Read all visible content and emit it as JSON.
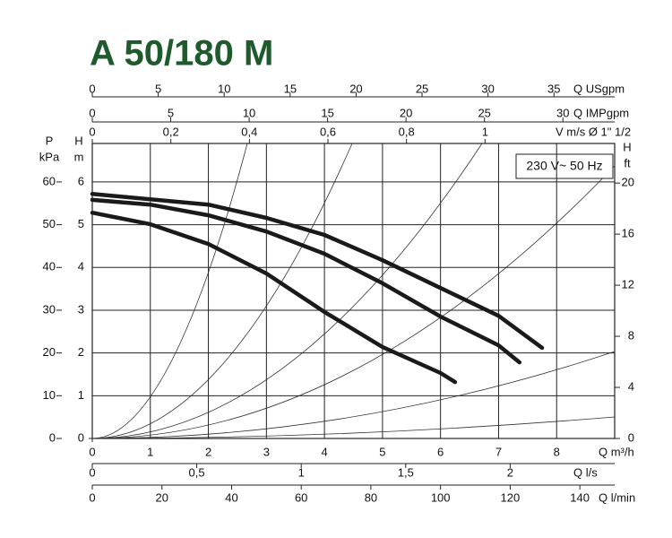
{
  "chart_data": {
    "type": "line",
    "title": "A 50/180 M",
    "annotation": "230 V~ 50 Hz",
    "x_label": "Q m³/h",
    "xlim": [
      0,
      9
    ],
    "xticks": [
      0,
      1,
      2,
      3,
      4,
      5,
      6,
      7,
      8
    ],
    "y_label": [
      "H",
      "m"
    ],
    "ylim": [
      0,
      6.9
    ],
    "yticks": [
      0,
      1,
      2,
      3,
      4,
      5,
      6
    ],
    "grid": true,
    "series": [
      {
        "color": "#1a1a1a",
        "x": [
          0,
          2,
          3,
          4,
          5,
          6,
          7,
          7.75
        ],
        "values": [
          5.72,
          5.47,
          5.16,
          4.76,
          4.17,
          3.52,
          2.87,
          2.12
        ]
      },
      {
        "color": "#1a1a1a",
        "x": [
          0,
          1,
          2,
          3,
          4,
          5,
          6,
          7,
          7.36
        ],
        "values": [
          5.58,
          5.47,
          5.22,
          4.84,
          4.32,
          3.63,
          2.85,
          2.18,
          1.78
        ]
      },
      {
        "color": "#1a1a1a",
        "x": [
          0,
          1,
          2,
          3,
          4,
          5,
          6,
          6.25
        ],
        "values": [
          5.28,
          5.01,
          4.55,
          3.86,
          2.96,
          2.14,
          1.53,
          1.32
        ]
      }
    ],
    "axes": [
      {
        "side": "left",
        "label": [
          "P",
          "kPa"
        ],
        "lim": [
          0,
          69
        ],
        "ticks": [
          0,
          10,
          20,
          30,
          40,
          50,
          60
        ]
      },
      {
        "side": "right",
        "label": [
          "H",
          "ft"
        ],
        "lim": [
          0,
          23.1
        ],
        "ticks": [
          0,
          4,
          8,
          12,
          16,
          20
        ]
      },
      {
        "side": "top",
        "label": [
          "Q USgpm"
        ],
        "lim": [
          0,
          39.6
        ],
        "ticks": [
          0,
          5,
          10,
          15,
          20,
          25,
          30,
          35
        ]
      },
      {
        "side": "top",
        "label": [
          "Q IMPgpm"
        ],
        "lim": [
          0,
          33.3
        ],
        "ticks": [
          0,
          5,
          10,
          15,
          20,
          25,
          30
        ]
      },
      {
        "side": "top",
        "label": [
          "V m/s Ø 1\" 1/2"
        ],
        "lim": [
          0,
          1.33
        ],
        "ticks": [
          0,
          {
            "value": 0.2,
            "label": "0,2"
          },
          {
            "value": 0.4,
            "label": "0,4"
          },
          {
            "value": 0.6,
            "label": "0,6"
          },
          {
            "value": 0.8,
            "label": "0,8"
          },
          1
        ]
      },
      {
        "side": "bottom",
        "label": [
          "Q l/s"
        ],
        "lim": [
          0,
          2.5
        ],
        "ticks": [
          0,
          {
            "value": 0.5,
            "label": "0,5"
          },
          1,
          {
            "value": 1.5,
            "label": "1,5"
          },
          2
        ]
      },
      {
        "side": "bottom",
        "label": [
          "Q l/min"
        ],
        "lim": [
          0,
          150
        ],
        "ticks": [
          0,
          20,
          40,
          60,
          80,
          100,
          120,
          140
        ]
      }
    ]
  }
}
